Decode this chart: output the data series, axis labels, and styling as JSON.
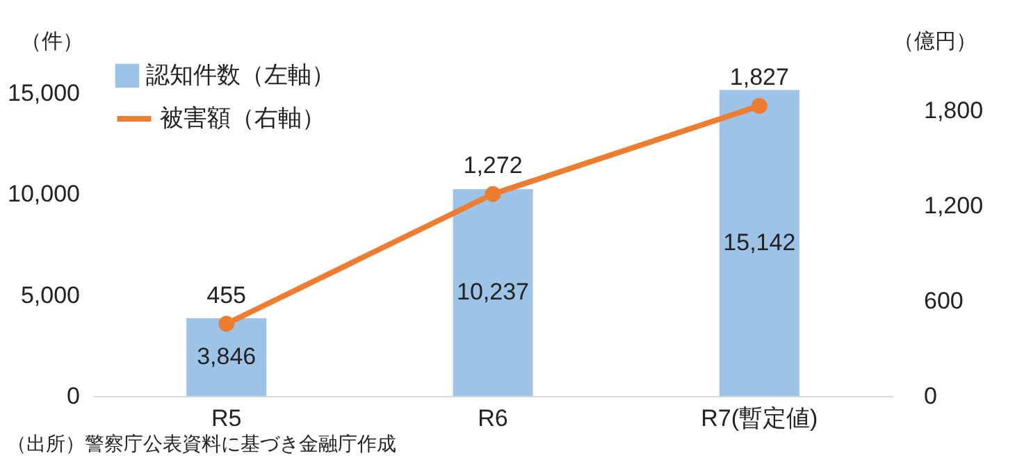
{
  "chart_data": {
    "type": "bar",
    "categories": [
      "R5",
      "R6",
      "R7(暫定値)"
    ],
    "series": [
      {
        "name": "認知件数（左軸）",
        "color": "#9dc3e6",
        "values": [
          3846,
          10237,
          15142
        ],
        "value_labels": [
          "3,846",
          "10,237",
          "15,142"
        ]
      },
      {
        "name": "被害額（右軸）",
        "type": "line",
        "axis": "y2",
        "color": "#ed7d31",
        "values": [
          455,
          1272,
          1827
        ],
        "value_labels": [
          "455",
          "1,272",
          "1,827"
        ]
      }
    ],
    "ylabel": "（件）",
    "y2label": "（億円）",
    "ylim": [
      0,
      16500
    ],
    "yticks": [
      0,
      {
        "value": 5000,
        "label": "5,000"
      },
      {
        "value": 10000,
        "label": "10,000"
      },
      {
        "value": 15000,
        "label": "15,000"
      }
    ],
    "y2lim": [
      0,
      2100
    ],
    "y2ticks": [
      0,
      600,
      {
        "value": 1200,
        "label": "1,200"
      },
      {
        "value": 1800,
        "label": "1,800"
      }
    ],
    "legend": "top left",
    "grid": false,
    "marker": "circle",
    "annotations": [
      "（出所）警察庁公表資料に基づき金融庁作成"
    ]
  }
}
